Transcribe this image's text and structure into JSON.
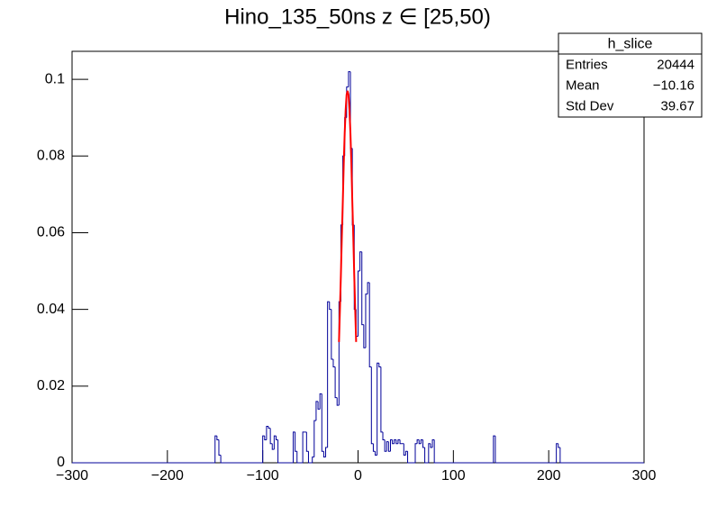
{
  "chart_data": {
    "type": "histogram",
    "title": "Hino_135_50ns z  ∈ [25,50)",
    "bins": [
      -300,
      -150,
      -148,
      -146,
      -144,
      -100,
      -98,
      -96,
      -94,
      -92,
      -90,
      -88,
      -86,
      -84,
      -68,
      -66,
      -64,
      -58,
      -56,
      -54,
      -52,
      -48,
      -46,
      -44,
      -42,
      -40,
      -38,
      -36,
      -34,
      -32,
      -30,
      -28,
      -26,
      -24,
      -22,
      -20,
      -18,
      -16,
      -14,
      -12,
      -10,
      -8,
      -6,
      -4,
      -2,
      0,
      2,
      4,
      6,
      8,
      10,
      12,
      14,
      16,
      18,
      20,
      22,
      24,
      26,
      28,
      30,
      32,
      34,
      36,
      38,
      40,
      42,
      44,
      46,
      48,
      50,
      52,
      60,
      62,
      64,
      66,
      68,
      70,
      74,
      76,
      78,
      80,
      142,
      144,
      208,
      210,
      212,
      300
    ],
    "counts": [
      0,
      0.007,
      0.006,
      0.002,
      0,
      0.007,
      0.006,
      0.0095,
      0.009,
      0.005,
      0.0035,
      0.007,
      0.006,
      0,
      0.008,
      0.003,
      0,
      0.008,
      0.008,
      0.003,
      0,
      0.0015,
      0.011,
      0.016,
      0.014,
      0.018,
      0.003,
      0.0015,
      0.004,
      0.042,
      0.04,
      0.027,
      0.025,
      0.017,
      0.015,
      0.042,
      0.062,
      0.08,
      0.09,
      0.098,
      0.102,
      0.082,
      0.062,
      0.04,
      0.033,
      0.05,
      0.055,
      0.036,
      0.03,
      0.044,
      0.047,
      0.025,
      0.005,
      0.003,
      0.002,
      0.026,
      0.025,
      0.008,
      0.006,
      0.003,
      0.0055,
      0.003,
      0.006,
      0.005,
      0.006,
      0.005,
      0.006,
      0.005,
      0.005,
      0.002,
      0.003,
      0,
      0.005,
      0.006,
      0.005,
      0.006,
      0.004,
      0,
      0.005,
      0.004,
      0.006,
      0,
      0.007,
      0,
      0.005,
      0.004,
      0
    ],
    "color": "#000099",
    "fit": {
      "color": "#ff0000",
      "x": [
        -20,
        -19,
        -18,
        -17,
        -16,
        -15,
        -14,
        -13,
        -12,
        -11,
        -10,
        -9,
        -8,
        -7,
        -6,
        -5,
        -4,
        -3,
        -2
      ],
      "values": [
        0.0315,
        0.04,
        0.049,
        0.059,
        0.068,
        0.078,
        0.086,
        0.092,
        0.096,
        0.097,
        0.096,
        0.092,
        0.086,
        0.078,
        0.068,
        0.059,
        0.049,
        0.04,
        0.0315
      ]
    },
    "xlim": [
      -300,
      300
    ],
    "xticks": [
      {
        "value": -300,
        "label": "−300"
      },
      {
        "value": -200,
        "label": "−200"
      },
      {
        "value": -100,
        "label": "−100"
      },
      0,
      100,
      200,
      300
    ],
    "ylim": [
      0,
      0.1073
    ],
    "yticks": [
      0,
      0.02,
      0.04,
      0.06,
      0.08,
      0.1
    ],
    "stats": {
      "title": "h_slice",
      "rows": [
        [
          "Entries",
          "20444"
        ],
        [
          "Mean",
          "−10.16"
        ],
        [
          "Std Dev",
          "39.67"
        ]
      ]
    }
  }
}
